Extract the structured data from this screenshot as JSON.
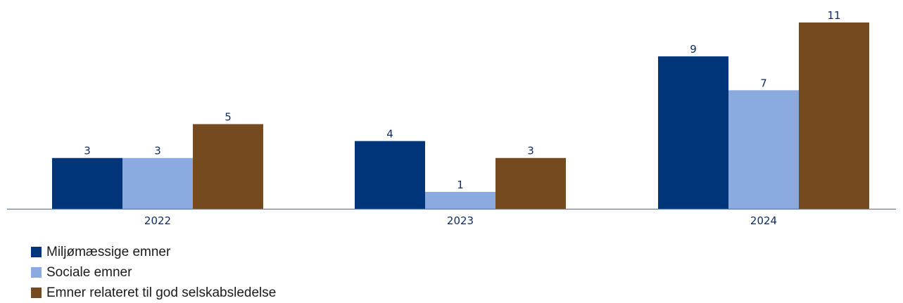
{
  "chart_data": {
    "type": "bar",
    "categories": [
      "2022",
      "2023",
      "2024"
    ],
    "series": [
      {
        "name": "Miljømæssige emner",
        "values": [
          3,
          4,
          9
        ],
        "color": "#003679"
      },
      {
        "name": "Sociale emner",
        "values": [
          3,
          1,
          7
        ],
        "color": "#8aaae0"
      },
      {
        "name": "Emner relateret til god selskabsledelse",
        "values": [
          5,
          3,
          11
        ],
        "color": "#754a1f"
      }
    ],
    "ylim": [
      0,
      11
    ],
    "grid": false,
    "legend_position": "bottom-left",
    "axis_color": "#5b7ea6",
    "label_color": "#0d2a5e"
  }
}
